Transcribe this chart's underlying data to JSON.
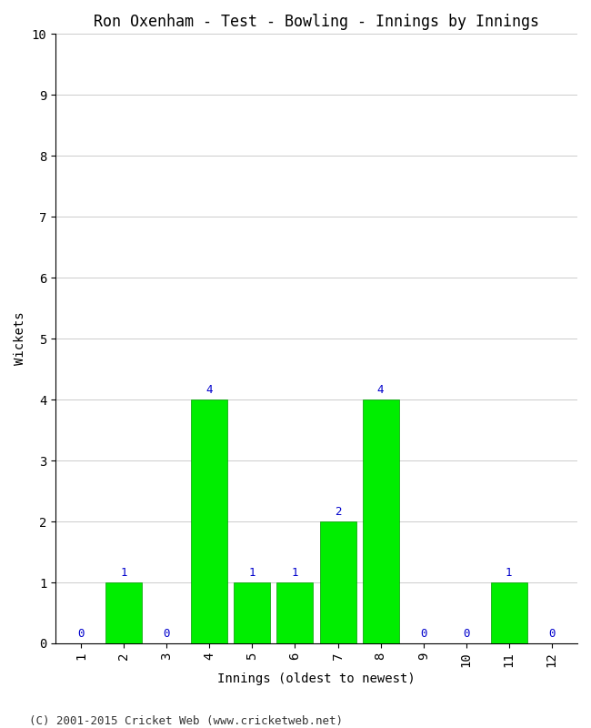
{
  "title": "Ron Oxenham - Test - Bowling - Innings by Innings",
  "xlabel": "Innings (oldest to newest)",
  "ylabel": "Wickets",
  "categories": [
    1,
    2,
    3,
    4,
    5,
    6,
    7,
    8,
    9,
    10,
    11,
    12
  ],
  "values": [
    0,
    1,
    0,
    4,
    1,
    1,
    2,
    4,
    0,
    0,
    1,
    0
  ],
  "bar_color": "#00ee00",
  "bar_edge_color": "#009900",
  "label_color": "#0000cc",
  "ylim": [
    0,
    10
  ],
  "yticks": [
    0,
    1,
    2,
    3,
    4,
    5,
    6,
    7,
    8,
    9,
    10
  ],
  "background_color": "#ffffff",
  "grid_color": "#cccccc",
  "title_fontsize": 12,
  "axis_label_fontsize": 10,
  "tick_fontsize": 10,
  "annotation_fontsize": 9,
  "footer": "(C) 2001-2015 Cricket Web (www.cricketweb.net)",
  "footer_fontsize": 9
}
